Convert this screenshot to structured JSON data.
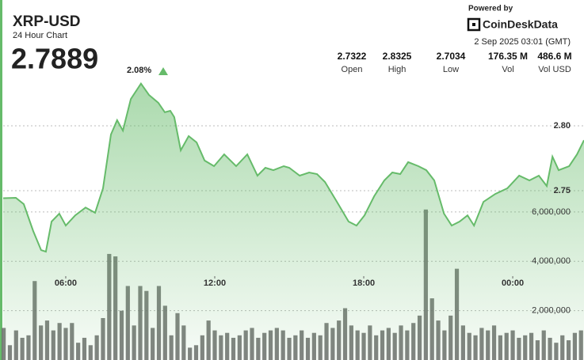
{
  "chart_data": {
    "type": "line",
    "title": "XRP-USD",
    "subtitle": "24 Hour Chart",
    "price": "2.7889",
    "change": "2.08%",
    "powered_by": "Powered by",
    "brand": "CoinDeskData",
    "timestamp": "2 Sep 2025 03:01 (GMT)",
    "stats": [
      {
        "value": "2.7322",
        "label": "Open"
      },
      {
        "value": "2.8325",
        "label": "High"
      },
      {
        "value": "2.7034",
        "label": "Low"
      },
      {
        "value": "176.35 M",
        "label": "Vol"
      },
      {
        "value": "486.6 M",
        "label": "Vol USD"
      }
    ],
    "xlim": [
      3.48,
      26.87
    ],
    "xticks": [
      {
        "value": 6,
        "label": "06:00"
      },
      {
        "value": 12,
        "label": "12:00"
      },
      {
        "value": 18,
        "label": "18:00"
      },
      {
        "value": 24,
        "label": "00:00"
      }
    ],
    "ylim": [
      2.6195,
      2.8872
    ],
    "yticks": [
      {
        "value": 2.75,
        "label": "2.75"
      },
      {
        "value": 2.8,
        "label": "2.80"
      }
    ],
    "y2lim": [
      0,
      14080000
    ],
    "y2ticks": [
      {
        "value": 2000000,
        "label": "2,000,000"
      },
      {
        "value": 4000000,
        "label": "4,000,000"
      },
      {
        "value": 6000000,
        "label": "6,000,000"
      }
    ],
    "grid": true,
    "series": [
      {
        "type": "line",
        "color": "#66bb6a",
        "x": [
          3.48,
          3.99,
          4.31,
          4.69,
          5.01,
          5.2,
          5.43,
          5.74,
          6.0,
          6.38,
          6.8,
          7.18,
          7.5,
          7.82,
          8.07,
          8.3,
          8.62,
          9.03,
          9.35,
          9.73,
          9.99,
          10.21,
          10.37,
          10.63,
          10.95,
          11.27,
          11.59,
          11.97,
          12.38,
          12.86,
          13.31,
          13.72,
          14.04,
          14.36,
          14.78,
          15.0,
          15.42,
          15.8,
          16.12,
          16.44,
          16.92,
          17.39,
          17.71,
          18.03,
          18.42,
          18.83,
          19.15,
          19.47,
          19.79,
          20.2,
          20.52,
          20.84,
          21.23,
          21.54,
          21.86,
          22.18,
          22.44,
          22.82,
          23.3,
          23.78,
          24.26,
          24.67,
          25.05,
          25.37,
          25.6,
          25.85,
          26.27,
          26.59,
          26.87
        ],
        "values": [
          2.7442,
          2.7445,
          2.7396,
          2.7189,
          2.7042,
          2.703,
          2.7262,
          2.7323,
          2.7231,
          2.731,
          2.737,
          2.733,
          2.7518,
          2.7933,
          2.8043,
          2.7963,
          2.8207,
          2.8325,
          2.8238,
          2.8177,
          2.8104,
          2.8116,
          2.8067,
          2.7811,
          2.7921,
          2.7872,
          2.7732,
          2.7689,
          2.778,
          2.7689,
          2.778,
          2.7616,
          2.7677,
          2.7658,
          2.7689,
          2.7677,
          2.7616,
          2.764,
          2.7628,
          2.7567,
          2.7414,
          2.7262,
          2.7231,
          2.731,
          2.7457,
          2.7579,
          2.764,
          2.7628,
          2.772,
          2.7689,
          2.7658,
          2.7579,
          2.7323,
          2.7231,
          2.7262,
          2.731,
          2.7231,
          2.7414,
          2.7475,
          2.7518,
          2.7616,
          2.7579,
          2.7616,
          2.7536,
          2.7762,
          2.7658,
          2.7689,
          2.778,
          2.7889
        ]
      },
      {
        "type": "bar",
        "axis": "y2",
        "color": "#6b6b6b",
        "x": [
          3.5,
          3.75,
          4,
          4.25,
          4.5,
          4.75,
          5,
          5.25,
          5.5,
          5.75,
          6,
          6.25,
          6.5,
          6.75,
          7,
          7.25,
          7.5,
          7.75,
          8,
          8.25,
          8.5,
          8.75,
          9,
          9.25,
          9.5,
          9.75,
          10,
          10.25,
          10.5,
          10.75,
          11,
          11.25,
          11.5,
          11.75,
          12,
          12.25,
          12.5,
          12.75,
          13,
          13.25,
          13.5,
          13.75,
          14,
          14.25,
          14.5,
          14.75,
          15,
          15.25,
          15.5,
          15.75,
          16,
          16.25,
          16.5,
          16.75,
          17,
          17.25,
          17.5,
          17.75,
          18,
          18.25,
          18.5,
          18.75,
          19,
          19.25,
          19.5,
          19.75,
          20,
          20.25,
          20.5,
          20.75,
          21,
          21.25,
          21.5,
          21.75,
          22,
          22.25,
          22.5,
          22.75,
          23,
          23.25,
          23.5,
          23.75,
          24,
          24.25,
          24.5,
          24.75,
          25,
          25.25,
          25.5,
          25.75,
          26,
          26.25,
          26.5,
          26.75
        ],
        "values": [
          1300000,
          600000,
          1200000,
          900000,
          1000000,
          3200000,
          1400000,
          1600000,
          1200000,
          1500000,
          1300000,
          1500000,
          700000,
          900000,
          600000,
          1000000,
          1700000,
          4300000,
          4200000,
          2000000,
          3000000,
          1400000,
          3000000,
          2800000,
          1300000,
          3000000,
          2200000,
          1000000,
          1900000,
          1400000,
          500000,
          600000,
          1000000,
          1600000,
          1200000,
          1000000,
          1100000,
          900000,
          1000000,
          1200000,
          1300000,
          900000,
          1100000,
          1200000,
          1300000,
          1200000,
          900000,
          1000000,
          1200000,
          900000,
          1100000,
          1000000,
          1500000,
          1300000,
          1600000,
          2100000,
          1400000,
          1200000,
          1100000,
          1400000,
          1000000,
          1200000,
          1300000,
          1100000,
          1400000,
          1200000,
          1500000,
          1800000,
          6100000,
          2500000,
          1600000,
          1200000,
          1800000,
          3700000,
          1400000,
          1100000,
          1000000,
          1300000,
          1200000,
          1400000,
          1000000,
          1100000,
          1200000,
          900000,
          1000000,
          1100000,
          800000,
          1200000,
          900000,
          700000,
          1000000,
          800000,
          1100000,
          1200000
        ]
      }
    ]
  }
}
